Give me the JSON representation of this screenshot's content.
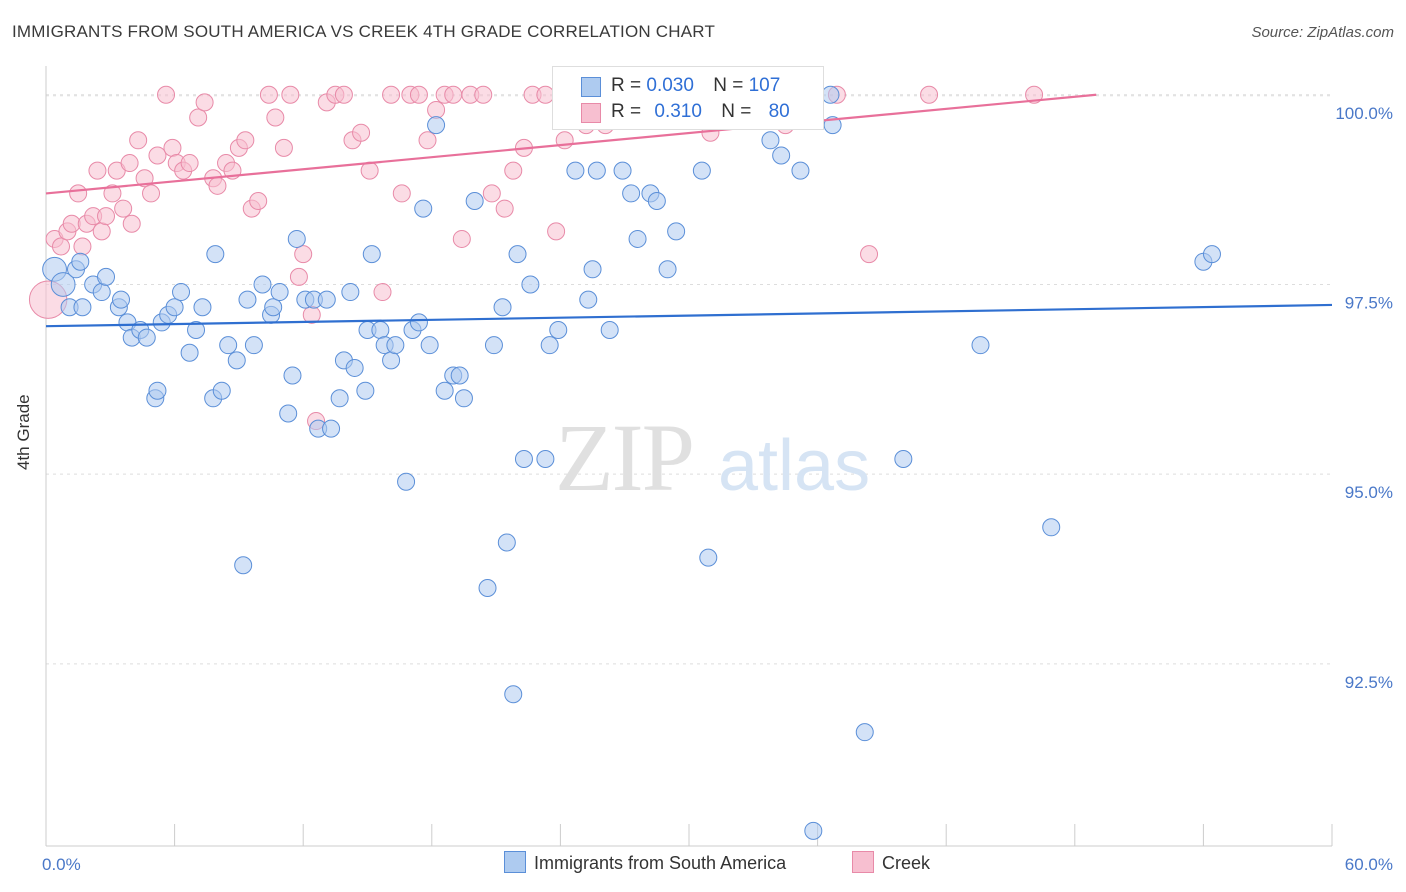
{
  "header": {
    "title": "IMMIGRANTS FROM SOUTH AMERICA VS CREEK 4TH GRADE CORRELATION CHART",
    "source": "Source: ZipAtlas.com"
  },
  "watermark": {
    "zip": "ZIP",
    "atlas": "atlas"
  },
  "colors": {
    "blue_fill": "#aecbf0",
    "blue_stroke": "#5b8fd8",
    "blue_line": "#2f6fd0",
    "pink_fill": "#f7bfd0",
    "pink_stroke": "#e88aa8",
    "pink_line": "#e8709a",
    "tick_text": "#4a78c8",
    "grid": "#dddddd"
  },
  "legend_top": {
    "rows": [
      {
        "r_label": "R =",
        "r_value": "0.030",
        "n_label": "N =",
        "n_value": "107",
        "series": "blue"
      },
      {
        "r_label": "R =",
        "r_value": "0.310",
        "n_label": "N =",
        "n_value": "80",
        "series": "pink"
      }
    ]
  },
  "legend_bottom": {
    "items": [
      {
        "label": "Immigrants from South America",
        "series": "blue"
      },
      {
        "label": "Creek",
        "series": "pink"
      }
    ]
  },
  "chart_data": {
    "type": "scatter",
    "title": "IMMIGRANTS FROM SOUTH AMERICA VS CREEK 4TH GRADE CORRELATION CHART",
    "xlabel": "",
    "ylabel": "4th Grade",
    "xlim": [
      0,
      60
    ],
    "ylim": [
      90.1,
      100.3
    ],
    "x_tick_labels": [
      {
        "value": 0,
        "label": "0.0%"
      },
      {
        "value": 60,
        "label": "60.0%"
      }
    ],
    "y_tick_labels": [
      {
        "value": 100.0,
        "label": "100.0%"
      },
      {
        "value": 97.5,
        "label": "97.5%"
      },
      {
        "value": 95.0,
        "label": "95.0%"
      },
      {
        "value": 92.5,
        "label": "92.5%"
      }
    ],
    "grid": true,
    "legend_placement": "top-center and bottom",
    "series": [
      {
        "name": "Immigrants from South America",
        "color": "blue",
        "trend": {
          "x": [
            0,
            60
          ],
          "y": [
            96.95,
            97.23
          ]
        },
        "points": [
          [
            0.4,
            97.7,
            1.4
          ],
          [
            0.8,
            97.5,
            1.4
          ],
          [
            1.1,
            97.2,
            1
          ],
          [
            1.4,
            97.7,
            1
          ],
          [
            1.6,
            97.8,
            1
          ],
          [
            1.7,
            97.2,
            1
          ],
          [
            2.2,
            97.5,
            1
          ],
          [
            2.6,
            97.4,
            1
          ],
          [
            2.8,
            97.6,
            1
          ],
          [
            3.4,
            97.2,
            1
          ],
          [
            3.5,
            97.3,
            1
          ],
          [
            3.8,
            97.0,
            1
          ],
          [
            4.0,
            96.8,
            1
          ],
          [
            4.4,
            96.9,
            1
          ],
          [
            4.7,
            96.8,
            1
          ],
          [
            5.1,
            96.0,
            1
          ],
          [
            5.2,
            96.1,
            1
          ],
          [
            5.4,
            97.0,
            1
          ],
          [
            5.7,
            97.1,
            1
          ],
          [
            6.0,
            97.2,
            1
          ],
          [
            6.3,
            97.4,
            1
          ],
          [
            6.7,
            96.6,
            1
          ],
          [
            7.0,
            96.9,
            1
          ],
          [
            7.3,
            97.2,
            1
          ],
          [
            7.8,
            96.0,
            1
          ],
          [
            7.9,
            97.9,
            1
          ],
          [
            8.2,
            96.1,
            1
          ],
          [
            8.5,
            96.7,
            1
          ],
          [
            8.9,
            96.5,
            1
          ],
          [
            9.2,
            93.8,
            1
          ],
          [
            9.4,
            97.3,
            1
          ],
          [
            9.7,
            96.7,
            1
          ],
          [
            10.1,
            97.5,
            1
          ],
          [
            10.5,
            97.1,
            1
          ],
          [
            10.6,
            97.2,
            1
          ],
          [
            10.9,
            97.4,
            1
          ],
          [
            11.3,
            95.8,
            1
          ],
          [
            11.5,
            96.3,
            1
          ],
          [
            11.7,
            98.1,
            1
          ],
          [
            12.1,
            97.3,
            1
          ],
          [
            12.5,
            97.3,
            1
          ],
          [
            12.7,
            95.6,
            1
          ],
          [
            13.1,
            97.3,
            1
          ],
          [
            13.3,
            95.6,
            1
          ],
          [
            13.7,
            96.0,
            1
          ],
          [
            13.9,
            96.5,
            1
          ],
          [
            14.2,
            97.4,
            1
          ],
          [
            14.4,
            96.4,
            1
          ],
          [
            14.9,
            96.1,
            1
          ],
          [
            15.0,
            96.9,
            1
          ],
          [
            15.2,
            97.9,
            1
          ],
          [
            15.6,
            96.9,
            1
          ],
          [
            15.8,
            96.7,
            1
          ],
          [
            16.1,
            96.5,
            1
          ],
          [
            16.3,
            96.7,
            1
          ],
          [
            16.8,
            94.9,
            1
          ],
          [
            17.1,
            96.9,
            1
          ],
          [
            17.4,
            97.0,
            1
          ],
          [
            17.6,
            98.5,
            1
          ],
          [
            17.9,
            96.7,
            1
          ],
          [
            18.2,
            99.6,
            1
          ],
          [
            18.6,
            96.1,
            1
          ],
          [
            19.0,
            96.3,
            1
          ],
          [
            19.3,
            96.3,
            1
          ],
          [
            19.5,
            96.0,
            1
          ],
          [
            20.0,
            98.6,
            1
          ],
          [
            20.6,
            93.5,
            1
          ],
          [
            20.9,
            96.7,
            1
          ],
          [
            21.3,
            97.2,
            1
          ],
          [
            21.5,
            94.1,
            1
          ],
          [
            21.8,
            92.1,
            1
          ],
          [
            22.0,
            97.9,
            1
          ],
          [
            22.3,
            95.2,
            1
          ],
          [
            22.6,
            97.5,
            1
          ],
          [
            23.3,
            95.2,
            1
          ],
          [
            23.5,
            96.7,
            1
          ],
          [
            23.9,
            96.9,
            1
          ],
          [
            24.2,
            100.0,
            1
          ],
          [
            24.7,
            99.0,
            1
          ],
          [
            25.3,
            97.3,
            1
          ],
          [
            25.5,
            97.7,
            1
          ],
          [
            25.7,
            99.0,
            1
          ],
          [
            26.3,
            96.9,
            1
          ],
          [
            26.9,
            99.0,
            1
          ],
          [
            27.3,
            98.7,
            1
          ],
          [
            27.6,
            98.1,
            1
          ],
          [
            28.2,
            98.7,
            1
          ],
          [
            28.5,
            98.6,
            1
          ],
          [
            29.0,
            97.7,
            1
          ],
          [
            29.4,
            98.2,
            1
          ],
          [
            29.9,
            100.0,
            1
          ],
          [
            30.6,
            99.0,
            1
          ],
          [
            30.9,
            93.9,
            1
          ],
          [
            33.8,
            99.4,
            1
          ],
          [
            34.3,
            99.2,
            1
          ],
          [
            35.2,
            99.0,
            1
          ],
          [
            35.8,
            90.3,
            1
          ],
          [
            36.6,
            100.0,
            1
          ],
          [
            36.7,
            99.6,
            1
          ],
          [
            38.2,
            91.6,
            1
          ],
          [
            40.0,
            95.2,
            1
          ],
          [
            43.6,
            96.7,
            1
          ],
          [
            46.9,
            94.3,
            1
          ],
          [
            54.0,
            97.8,
            1
          ],
          [
            54.4,
            97.9,
            1
          ],
          [
            26.0,
            100.0,
            1
          ],
          [
            25.0,
            99.8,
            1
          ]
        ]
      },
      {
        "name": "Creek",
        "color": "pink",
        "trend": {
          "x": [
            0,
            49
          ],
          "y": [
            98.7,
            100.0
          ]
        },
        "points": [
          [
            0.1,
            97.3,
            2.2
          ],
          [
            0.4,
            98.1,
            1
          ],
          [
            0.7,
            98.0,
            1
          ],
          [
            1.0,
            98.2,
            1
          ],
          [
            1.2,
            98.3,
            1
          ],
          [
            1.5,
            98.7,
            1
          ],
          [
            1.7,
            98.0,
            1
          ],
          [
            1.9,
            98.3,
            1
          ],
          [
            2.2,
            98.4,
            1
          ],
          [
            2.4,
            99.0,
            1
          ],
          [
            2.6,
            98.2,
            1
          ],
          [
            2.8,
            98.4,
            1
          ],
          [
            3.1,
            98.7,
            1
          ],
          [
            3.3,
            99.0,
            1
          ],
          [
            3.6,
            98.5,
            1
          ],
          [
            3.9,
            99.1,
            1
          ],
          [
            4.0,
            98.3,
            1
          ],
          [
            4.3,
            99.4,
            1
          ],
          [
            4.6,
            98.9,
            1
          ],
          [
            4.9,
            98.7,
            1
          ],
          [
            5.2,
            99.2,
            1
          ],
          [
            5.6,
            100.0,
            1
          ],
          [
            5.9,
            99.3,
            1
          ],
          [
            6.1,
            99.1,
            1
          ],
          [
            6.4,
            99.0,
            1
          ],
          [
            6.7,
            99.1,
            1
          ],
          [
            7.1,
            99.7,
            1
          ],
          [
            7.4,
            99.9,
            1
          ],
          [
            7.8,
            98.9,
            1
          ],
          [
            8.0,
            98.8,
            1
          ],
          [
            8.4,
            99.1,
            1
          ],
          [
            8.7,
            99.0,
            1
          ],
          [
            9.0,
            99.3,
            1
          ],
          [
            9.3,
            99.4,
            1
          ],
          [
            9.6,
            98.5,
            1
          ],
          [
            9.9,
            98.6,
            1
          ],
          [
            10.4,
            100.0,
            1
          ],
          [
            10.7,
            99.7,
            1
          ],
          [
            11.1,
            99.3,
            1
          ],
          [
            11.4,
            100.0,
            1
          ],
          [
            11.8,
            97.6,
            1
          ],
          [
            12.0,
            97.9,
            1
          ],
          [
            12.4,
            97.1,
            1
          ],
          [
            12.6,
            95.7,
            1
          ],
          [
            13.1,
            99.9,
            1
          ],
          [
            13.5,
            100.0,
            1
          ],
          [
            13.9,
            100.0,
            1
          ],
          [
            14.3,
            99.4,
            1
          ],
          [
            14.7,
            99.5,
            1
          ],
          [
            15.1,
            99.0,
            1
          ],
          [
            15.7,
            97.4,
            1
          ],
          [
            16.1,
            100.0,
            1
          ],
          [
            16.6,
            98.7,
            1
          ],
          [
            17.0,
            100.0,
            1
          ],
          [
            17.4,
            100.0,
            1
          ],
          [
            17.8,
            99.4,
            1
          ],
          [
            18.2,
            99.8,
            1
          ],
          [
            18.6,
            100.0,
            1
          ],
          [
            19.0,
            100.0,
            1
          ],
          [
            19.4,
            98.1,
            1
          ],
          [
            19.8,
            100.0,
            1
          ],
          [
            20.4,
            100.0,
            1
          ],
          [
            20.8,
            98.7,
            1
          ],
          [
            21.4,
            98.5,
            1
          ],
          [
            21.8,
            99.0,
            1
          ],
          [
            22.3,
            99.3,
            1
          ],
          [
            22.7,
            100.0,
            1
          ],
          [
            23.3,
            100.0,
            1
          ],
          [
            23.8,
            98.2,
            1
          ],
          [
            24.2,
            99.4,
            1
          ],
          [
            24.8,
            100.0,
            1
          ],
          [
            25.2,
            99.6,
            1
          ],
          [
            26.1,
            99.6,
            1
          ],
          [
            27.5,
            100.0,
            1
          ],
          [
            31.0,
            99.5,
            1
          ],
          [
            34.5,
            99.6,
            1
          ],
          [
            36.9,
            100.0,
            1
          ],
          [
            38.4,
            97.9,
            1
          ],
          [
            41.2,
            100.0,
            1
          ],
          [
            46.1,
            100.0,
            1
          ]
        ]
      }
    ]
  }
}
